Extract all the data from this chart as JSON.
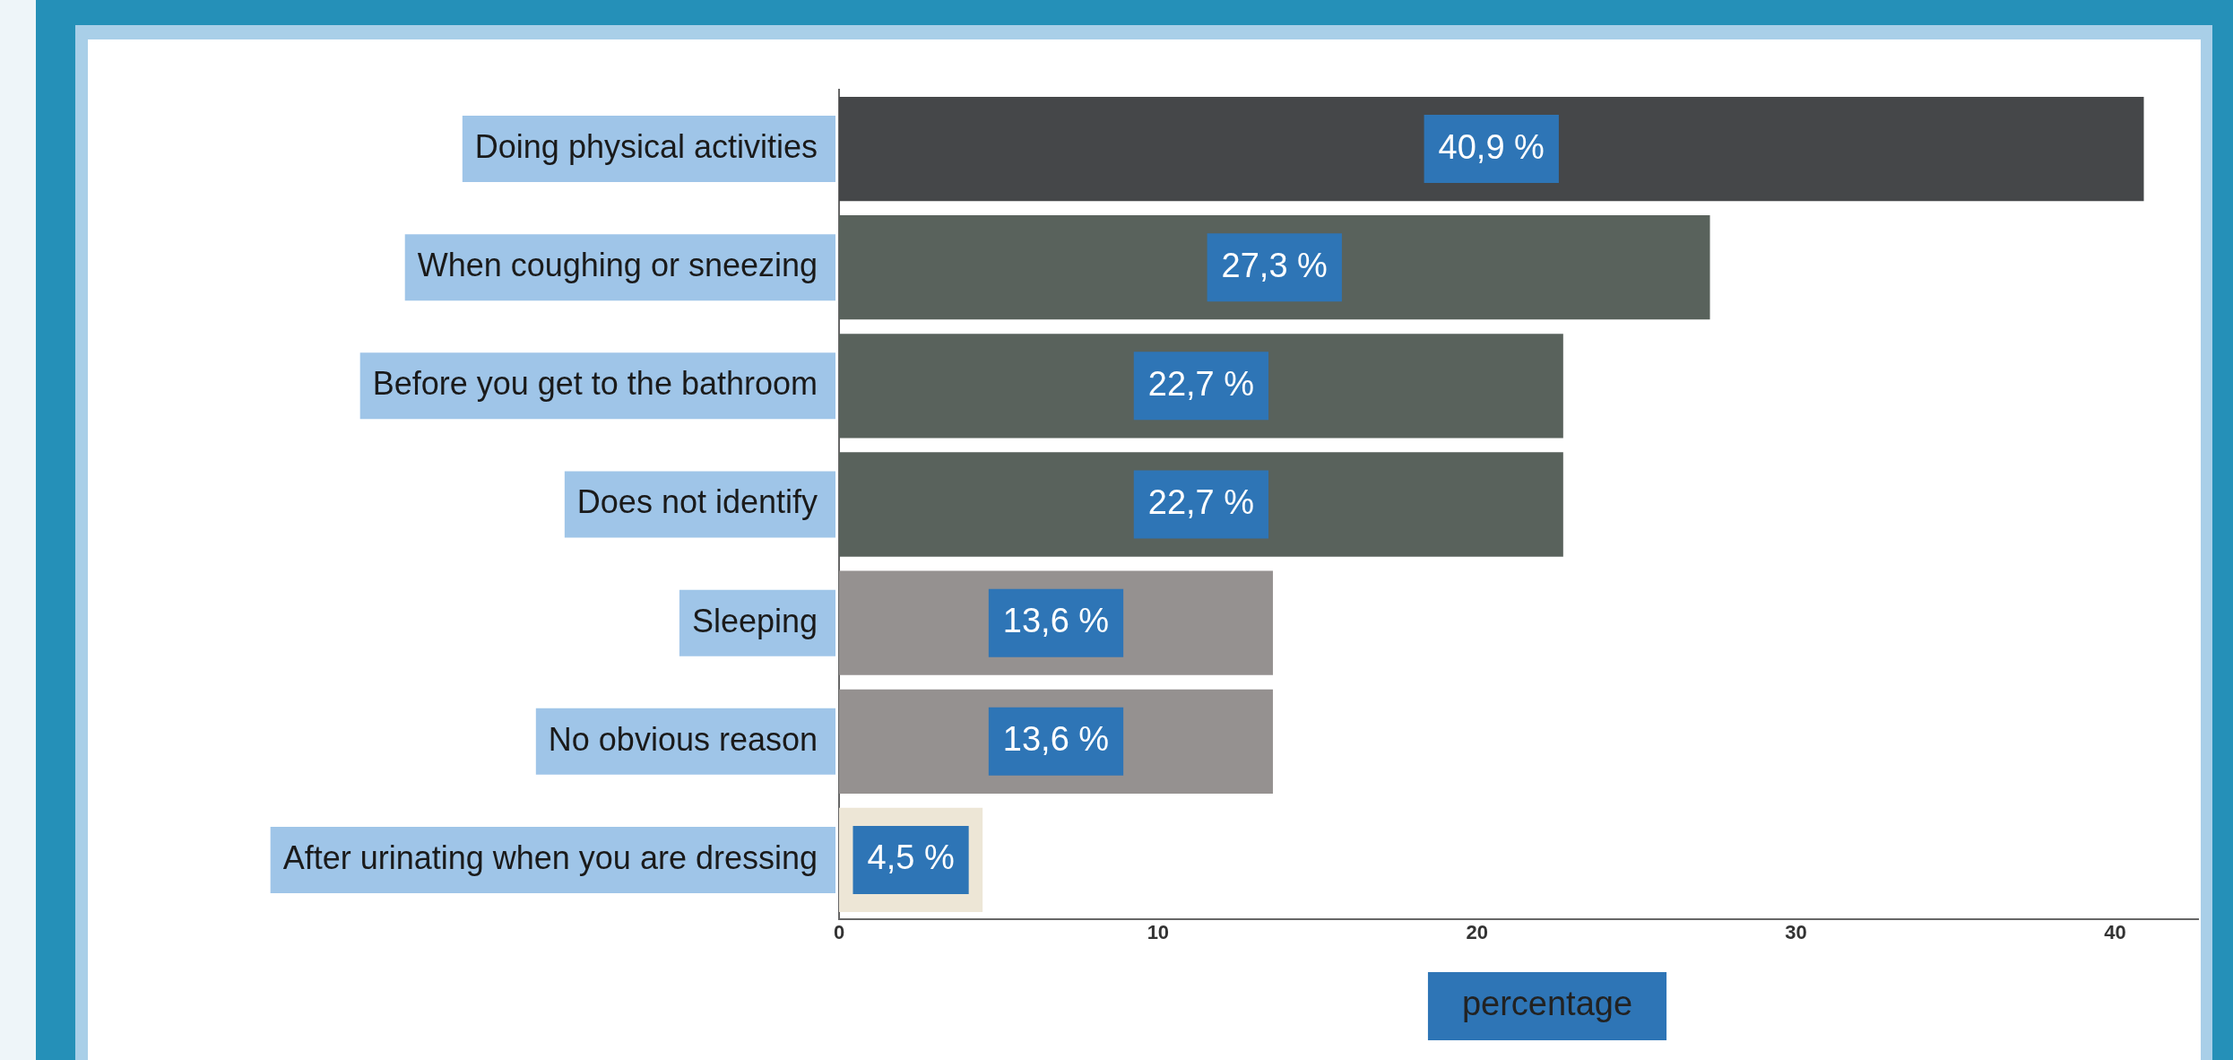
{
  "chart_data": {
    "type": "bar",
    "orientation": "horizontal",
    "xlabel": "percentage",
    "categories": [
      "Doing physical activities",
      "When coughing or sneezing",
      "Before you get to the bathroom",
      "Does not identify",
      "Sleeping",
      "No obvious reason",
      "After urinating when you are dressing"
    ],
    "values": [
      40.9,
      27.3,
      22.7,
      22.7,
      13.6,
      13.6,
      4.5
    ],
    "colors": [
      "#454749",
      "#59625c",
      "#59625c",
      "#59625c",
      "#959190",
      "#959190",
      "#ede6d6"
    ],
    "value_labels": [
      "40,9 %",
      "27,3 %",
      "22,7 %",
      "22,7 %",
      "13,6 %",
      "13,6 %",
      "4,5 %"
    ],
    "xlim": [
      0,
      42.6
    ],
    "xticks": [
      0,
      10,
      20,
      30,
      40
    ],
    "grid": false,
    "legend": false
  }
}
